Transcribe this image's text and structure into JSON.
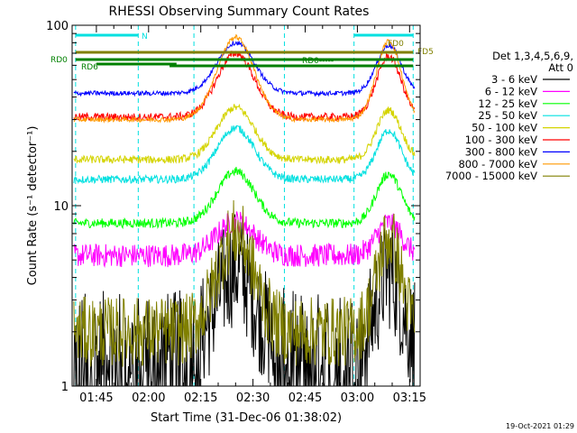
{
  "chart_data": {
    "type": "line",
    "title": "RHESSI Observing Summary Count Rates",
    "xlabel": "Start Time (31-Dec-06 01:38:02)",
    "ylabel": "Count Rate (s⁻¹ detector⁻¹)",
    "ylog": true,
    "ylim": [
      1,
      100
    ],
    "xlim_minutes": [
      0,
      100
    ],
    "x_ticks": [
      {
        "label": "01:45",
        "minute": 6.97
      },
      {
        "label": "02:00",
        "minute": 21.97
      },
      {
        "label": "02:15",
        "minute": 36.97
      },
      {
        "label": "02:30",
        "minute": 51.97
      },
      {
        "label": "02:45",
        "minute": 66.97
      },
      {
        "label": "03:00",
        "minute": 81.97
      },
      {
        "label": "03:15",
        "minute": 96.97
      }
    ],
    "y_ticks": [
      {
        "label": "1",
        "value": 1
      },
      {
        "label": "10",
        "value": 10
      },
      {
        "label": "100",
        "value": 100
      }
    ],
    "legend": {
      "placement": "right",
      "header": [
        "Det 1,3,4,5,6,9,",
        "Att 0"
      ]
    },
    "series": [
      {
        "name": "3 - 6 keV",
        "color": "#000000",
        "base": 1.6,
        "peak": 4.5,
        "noise": 0.5,
        "night_gap": true
      },
      {
        "name": "6 - 12 keV",
        "color": "#ff00ff",
        "base": 5.3,
        "peak": 8.2,
        "noise": 0.15
      },
      {
        "name": "12 - 25 keV",
        "color": "#00ff00",
        "base": 8.0,
        "peak": 15.5,
        "noise": 0.06
      },
      {
        "name": "25 - 50 keV",
        "color": "#00e0e0",
        "base": 14.0,
        "peak": 27.0,
        "noise": 0.05
      },
      {
        "name": "50 - 100 keV",
        "color": "#d4d400",
        "base": 18.0,
        "peak": 35.0,
        "noise": 0.05
      },
      {
        "name": "100 - 300 keV",
        "color": "#ff0000",
        "base": 31.0,
        "peak": 70.0,
        "noise": 0.05
      },
      {
        "name": "300 - 800 keV",
        "color": "#0000ff",
        "base": 42.0,
        "peak": 80.0,
        "noise": 0.03
      },
      {
        "name": "800 - 7000 keV",
        "color": "#ff9900",
        "base": 30.0,
        "peak": 86.0,
        "noise": 0.03
      },
      {
        "name": "7000 - 15000 keV",
        "color": "#808000",
        "base": 2.0,
        "peak": 7.0,
        "noise": 0.45
      }
    ],
    "flags": [
      {
        "label": "N",
        "color": "#00e0e0"
      },
      {
        "label": "FD0",
        "color": "#808000"
      },
      {
        "label": "FD5",
        "color": "#808000"
      },
      {
        "label": "RD0",
        "color": "#008000"
      },
      {
        "label": "RD6",
        "color": "#008000"
      },
      {
        "label": "RD0-----",
        "color": "#008000"
      }
    ]
  },
  "timestamp": "19-Oct-2021 01:29"
}
